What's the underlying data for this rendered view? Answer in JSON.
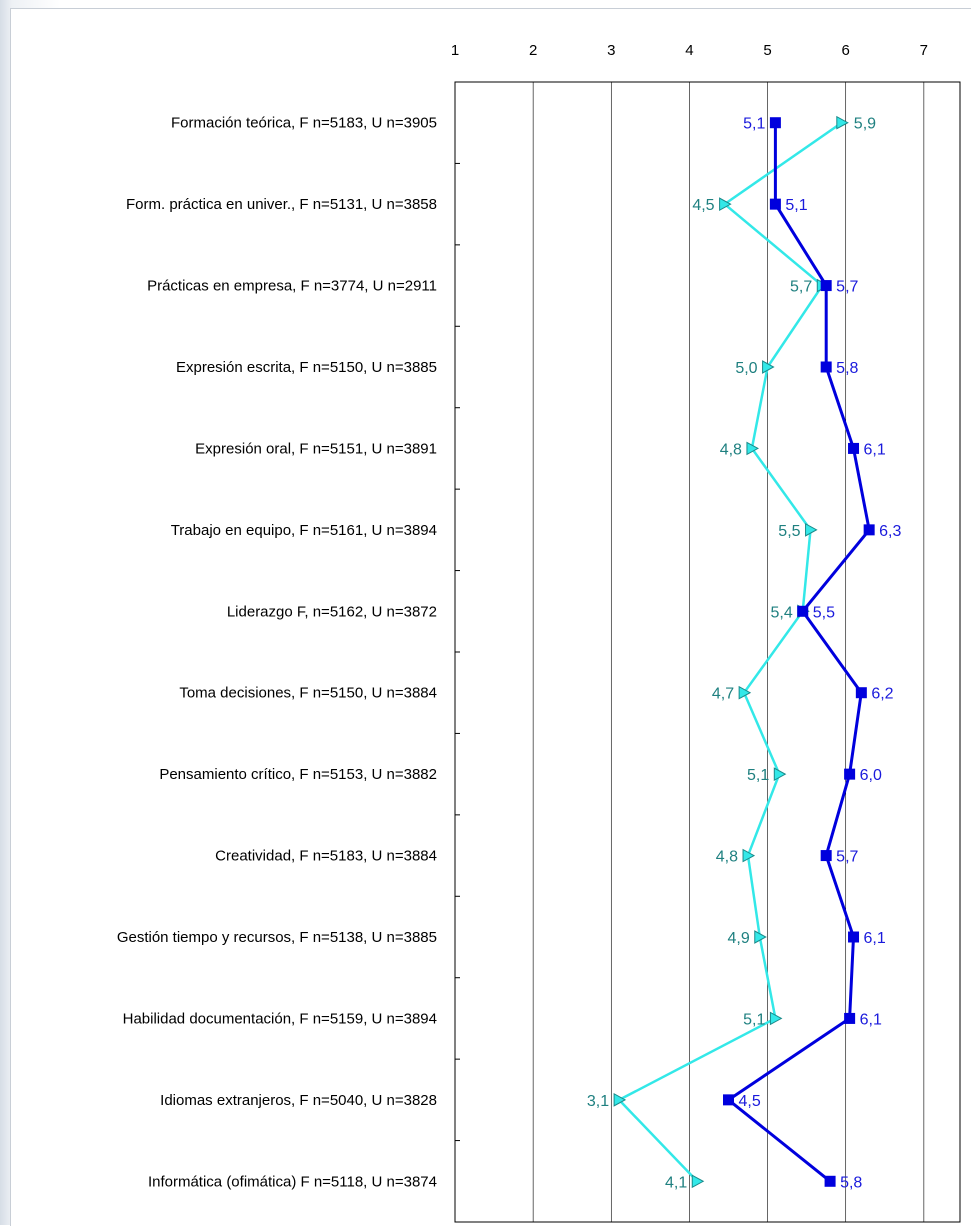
{
  "colors": {
    "series_u": "#0000dd",
    "series_f": "#33e8e8",
    "label_u": "#1a1adc",
    "label_f": "#1f8080",
    "grid": "#000000"
  },
  "chart_data": {
    "type": "line",
    "orientation": "horizontal",
    "xlim": [
      1,
      8
    ],
    "x_ticks": [
      "1",
      "2",
      "3",
      "4",
      "5",
      "6",
      "7",
      "8"
    ],
    "grid": "vertical lines at integer values",
    "categories": [
      "Formación teórica,  F n=5183, U n=3905",
      "Form. práctica en univer.,  F n=5131, U n=3858",
      "Prácticas en empresa, F n=3774, U n=2911",
      "Expresión escrita,  F n=5150, U n=3885",
      "Expresión oral,  F n=5151, U n=3891",
      "Trabajo en equipo,  F n=5161, U n=3894",
      "Liderazgo F,  n=5162, U n=3872",
      "Toma decisiones,  F n=5150, U n=3884",
      "Pensamiento crítico,  F n=5153, U n=3882",
      "Creatividad,  F n=5183, U n=3884",
      "Gestión tiempo y recursos,  F n=5138, U n=3885",
      "Habilidad documentación,  F n=5159, U n=3894",
      "Idiomas extranjeros,  F n=5040, U n=3828",
      "Informática (ofimática) F n=5118, U n=3874"
    ],
    "series": [
      {
        "marker": "square",
        "color": "#0000dd",
        "values": [
          5.1,
          5.1,
          5.75,
          5.75,
          6.1,
          6.3,
          5.45,
          6.2,
          6.05,
          5.75,
          6.1,
          6.05,
          4.5,
          5.8
        ],
        "labels": [
          "5,1",
          "5,1",
          "5,7",
          "5,8",
          "6,1",
          "6,3",
          "5,5",
          "6,2",
          "6,0",
          "5,7",
          "6,1",
          "6,1",
          "4,5",
          "5,8"
        ]
      },
      {
        "marker": "triangle",
        "color": "#33e8e8",
        "values": [
          5.95,
          4.45,
          5.7,
          5.0,
          4.8,
          5.55,
          5.45,
          4.7,
          5.15,
          4.75,
          4.9,
          5.1,
          3.1,
          4.1
        ],
        "labels": [
          "5,9",
          "4,5",
          "5,7",
          "5,0",
          "4,8",
          "5,5",
          "5,4",
          "4,7",
          "5,1",
          "4,8",
          "4,9",
          "5,1",
          "3,1",
          "4,1"
        ]
      }
    ]
  }
}
